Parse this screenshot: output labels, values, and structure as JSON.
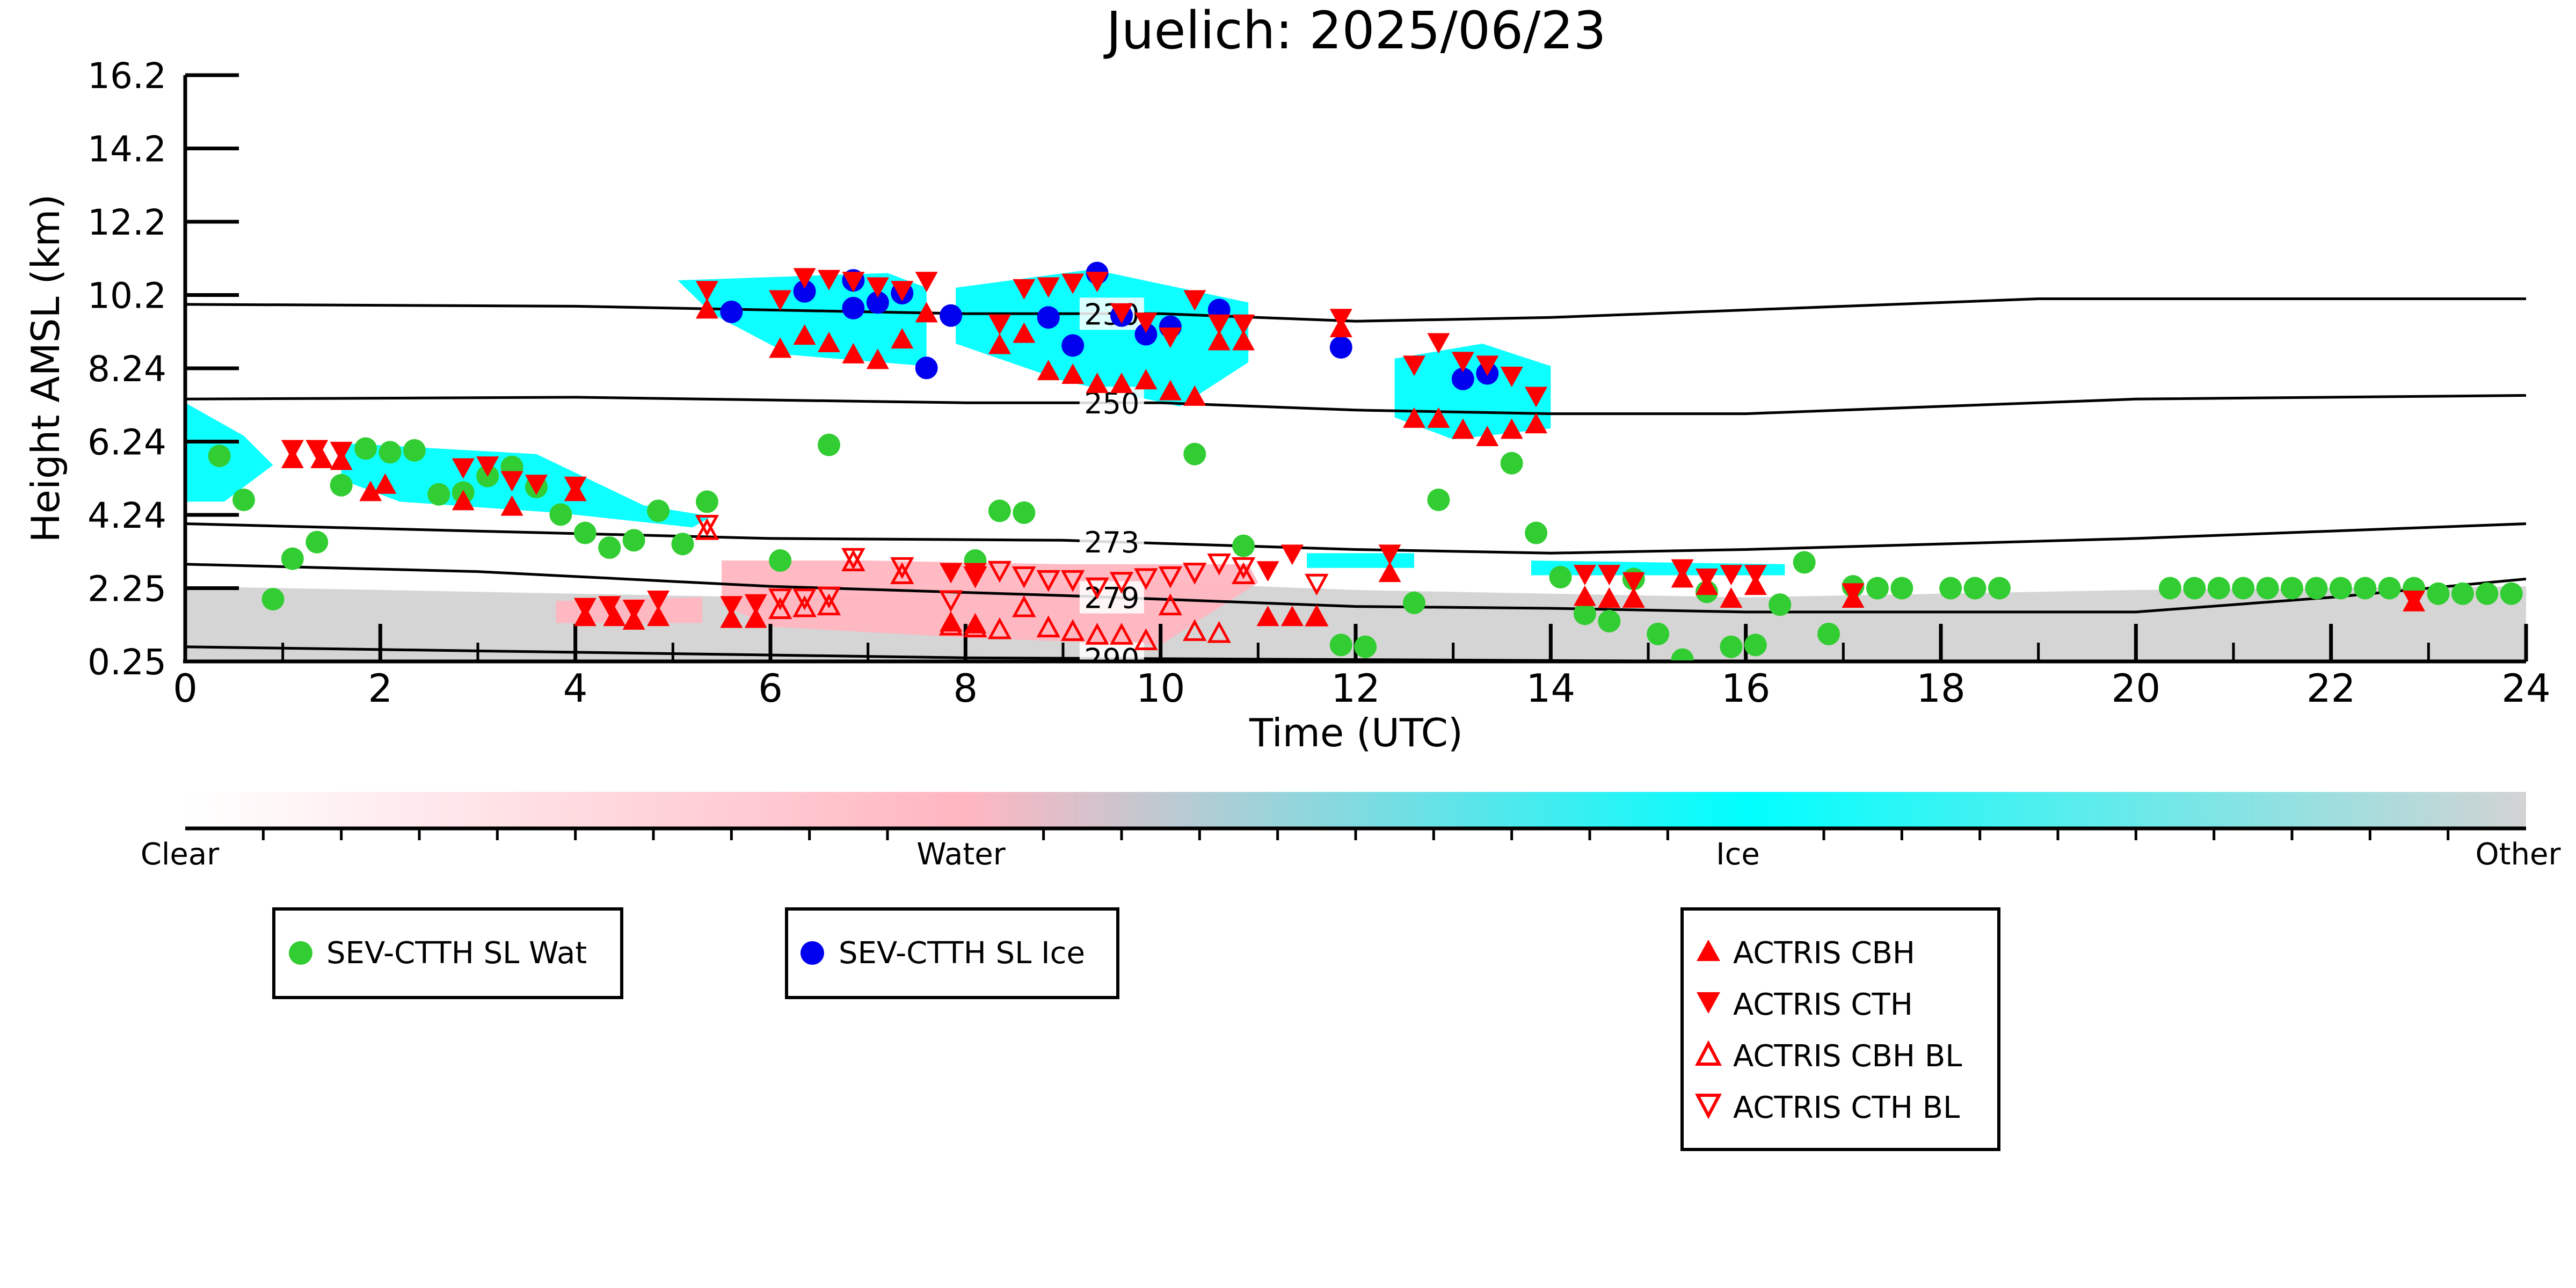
{
  "chart_data": {
    "type": "scatter",
    "title": "Juelich: 2025/06/23",
    "xlabel": "Time (UTC)",
    "ylabel": "Height AMSL (km)",
    "xlim": [
      0,
      24
    ],
    "ylim": [
      0.25,
      16.2
    ],
    "x_ticks": [
      "0",
      "2",
      "4",
      "6",
      "8",
      "10",
      "12",
      "14",
      "16",
      "18",
      "20",
      "22",
      "24"
    ],
    "y_ticks": [
      "0.25",
      "2.25",
      "4.24",
      "6.24",
      "8.24",
      "10.2",
      "12.2",
      "14.2",
      "16.2"
    ],
    "colorbar": {
      "labels": [
        "Clear",
        "Water",
        "Ice",
        "Other"
      ],
      "colors": [
        "#ffffff",
        "#ffb6c1",
        "#00ffff",
        "#d3d3d3"
      ]
    },
    "isotherms": [
      {
        "label": "230",
        "points": [
          [
            0,
            9.95
          ],
          [
            4,
            9.9
          ],
          [
            8,
            9.7
          ],
          [
            10,
            9.7
          ],
          [
            12,
            9.5
          ],
          [
            14,
            9.6
          ],
          [
            16,
            9.8
          ],
          [
            19,
            10.1
          ],
          [
            24,
            10.1
          ]
        ]
      },
      {
        "label": "250",
        "points": [
          [
            0,
            7.4
          ],
          [
            4,
            7.45
          ],
          [
            8,
            7.3
          ],
          [
            10,
            7.3
          ],
          [
            12,
            7.1
          ],
          [
            14,
            7.0
          ],
          [
            16,
            7.0
          ],
          [
            20,
            7.4
          ],
          [
            24,
            7.5
          ]
        ]
      },
      {
        "label": "273",
        "points": [
          [
            0,
            4.0
          ],
          [
            3,
            3.8
          ],
          [
            6,
            3.6
          ],
          [
            9,
            3.55
          ],
          [
            12,
            3.3
          ],
          [
            14,
            3.2
          ],
          [
            16,
            3.3
          ],
          [
            20,
            3.6
          ],
          [
            24,
            4.0
          ]
        ]
      },
      {
        "label": "279",
        "points": [
          [
            0,
            2.9
          ],
          [
            3,
            2.7
          ],
          [
            6,
            2.3
          ],
          [
            9,
            2.05
          ],
          [
            12,
            1.75
          ],
          [
            14,
            1.7
          ],
          [
            16,
            1.6
          ],
          [
            20,
            1.6
          ],
          [
            22,
            2.0
          ],
          [
            24,
            2.5
          ]
        ]
      },
      {
        "label": "290",
        "points": [
          [
            0,
            0.65
          ],
          [
            4,
            0.5
          ],
          [
            8,
            0.35
          ],
          [
            12,
            0.3
          ],
          [
            16,
            0.25
          ],
          [
            24,
            0.25
          ]
        ]
      }
    ],
    "series": [
      {
        "name": "SEV-CTTH SL Wat",
        "marker": "circle",
        "color": "#32cd32",
        "points": [
          [
            0.35,
            5.85
          ],
          [
            0.6,
            4.65
          ],
          [
            0.9,
            1.95
          ],
          [
            1.1,
            3.05
          ],
          [
            1.35,
            3.5
          ],
          [
            1.6,
            5.05
          ],
          [
            1.85,
            6.05
          ],
          [
            2.1,
            5.95
          ],
          [
            2.35,
            6.0
          ],
          [
            2.6,
            4.8
          ],
          [
            2.85,
            4.85
          ],
          [
            3.1,
            5.3
          ],
          [
            3.35,
            5.55
          ],
          [
            3.6,
            5.0
          ],
          [
            3.85,
            4.25
          ],
          [
            4.1,
            3.75
          ],
          [
            4.35,
            3.35
          ],
          [
            4.6,
            3.55
          ],
          [
            4.85,
            4.35
          ],
          [
            5.1,
            3.45
          ],
          [
            5.35,
            4.6
          ],
          [
            6.1,
            3.0
          ],
          [
            6.6,
            6.15
          ],
          [
            8.1,
            3.0
          ],
          [
            8.35,
            4.35
          ],
          [
            8.6,
            4.3
          ],
          [
            10.35,
            5.9
          ],
          [
            10.85,
            3.4
          ],
          [
            11.85,
            0.7
          ],
          [
            12.1,
            0.65
          ],
          [
            12.6,
            1.85
          ],
          [
            12.85,
            4.65
          ],
          [
            13.6,
            5.65
          ],
          [
            13.85,
            3.75
          ],
          [
            14.1,
            2.55
          ],
          [
            14.35,
            1.55
          ],
          [
            14.6,
            1.35
          ],
          [
            14.85,
            2.5
          ],
          [
            15.1,
            1.0
          ],
          [
            15.35,
            0.3
          ],
          [
            15.6,
            2.15
          ],
          [
            15.85,
            0.65
          ],
          [
            16.1,
            0.7
          ],
          [
            16.35,
            1.8
          ],
          [
            16.6,
            2.95
          ],
          [
            16.85,
            1.0
          ],
          [
            17.1,
            2.3
          ],
          [
            17.35,
            2.25
          ],
          [
            17.6,
            2.25
          ],
          [
            18.1,
            2.25
          ],
          [
            18.35,
            2.25
          ],
          [
            18.6,
            2.25
          ],
          [
            20.35,
            2.25
          ],
          [
            20.6,
            2.25
          ],
          [
            20.85,
            2.25
          ],
          [
            21.1,
            2.25
          ],
          [
            21.35,
            2.25
          ],
          [
            21.6,
            2.25
          ],
          [
            21.85,
            2.25
          ],
          [
            22.1,
            2.25
          ],
          [
            22.35,
            2.25
          ],
          [
            22.6,
            2.25
          ],
          [
            22.85,
            2.25
          ],
          [
            23.1,
            2.1
          ],
          [
            23.35,
            2.1
          ],
          [
            23.6,
            2.1
          ],
          [
            23.85,
            2.1
          ]
        ]
      },
      {
        "name": "SEV-CTTH SL Ice",
        "marker": "circle",
        "color": "#0000ee",
        "points": [
          [
            5.6,
            9.75
          ],
          [
            6.85,
            10.6
          ],
          [
            6.35,
            10.3
          ],
          [
            6.85,
            9.85
          ],
          [
            7.1,
            10.0
          ],
          [
            7.35,
            10.25
          ],
          [
            7.6,
            8.25
          ],
          [
            7.85,
            9.65
          ],
          [
            8.85,
            9.6
          ],
          [
            9.1,
            8.85
          ],
          [
            9.35,
            10.8
          ],
          [
            9.6,
            9.65
          ],
          [
            9.85,
            9.15
          ],
          [
            10.1,
            9.35
          ],
          [
            10.6,
            9.8
          ],
          [
            11.85,
            8.8
          ],
          [
            13.1,
            7.95
          ],
          [
            13.35,
            8.1
          ]
        ]
      },
      {
        "name": "ACTRIS CBH",
        "marker": "triangle-up",
        "color": "#ff0000",
        "points": [
          [
            1.1,
            5.75
          ],
          [
            1.4,
            5.75
          ],
          [
            1.6,
            5.7
          ],
          [
            1.9,
            4.85
          ],
          [
            2.05,
            5.05
          ],
          [
            2.85,
            4.6
          ],
          [
            3.35,
            4.45
          ],
          [
            4.0,
            4.85
          ],
          [
            4.1,
            1.45
          ],
          [
            4.4,
            1.45
          ],
          [
            4.6,
            1.35
          ],
          [
            4.85,
            1.45
          ],
          [
            5.35,
            9.8
          ],
          [
            5.6,
            1.4
          ],
          [
            5.85,
            1.4
          ],
          [
            6.1,
            8.75
          ],
          [
            6.35,
            9.1
          ],
          [
            6.6,
            8.9
          ],
          [
            6.85,
            8.6
          ],
          [
            7.1,
            8.45
          ],
          [
            7.35,
            9.0
          ],
          [
            7.6,
            9.7
          ],
          [
            7.85,
            1.3
          ],
          [
            8.1,
            1.25
          ],
          [
            8.35,
            8.85
          ],
          [
            8.6,
            9.15
          ],
          [
            8.85,
            8.15
          ],
          [
            9.1,
            8.05
          ],
          [
            9.35,
            7.8
          ],
          [
            9.6,
            7.8
          ],
          [
            9.85,
            7.9
          ],
          [
            10.1,
            7.6
          ],
          [
            10.35,
            7.45
          ],
          [
            10.6,
            8.95
          ],
          [
            10.85,
            8.95
          ],
          [
            11.1,
            1.45
          ],
          [
            11.35,
            1.45
          ],
          [
            11.6,
            1.45
          ],
          [
            11.85,
            9.3
          ],
          [
            12.35,
            2.65
          ],
          [
            12.6,
            6.85
          ],
          [
            12.85,
            6.85
          ],
          [
            13.1,
            6.55
          ],
          [
            13.35,
            6.35
          ],
          [
            13.6,
            6.55
          ],
          [
            13.85,
            6.7
          ],
          [
            14.35,
            2.0
          ],
          [
            14.6,
            1.95
          ],
          [
            14.85,
            1.95
          ],
          [
            15.35,
            2.5
          ],
          [
            15.6,
            2.3
          ],
          [
            15.85,
            1.95
          ],
          [
            16.1,
            2.3
          ],
          [
            17.1,
            1.95
          ],
          [
            22.85,
            1.85
          ]
        ]
      },
      {
        "name": "ACTRIS CTH",
        "marker": "triangle-down",
        "color": "#ff0000",
        "points": [
          [
            1.1,
            6.05
          ],
          [
            1.35,
            6.05
          ],
          [
            1.6,
            6.0
          ],
          [
            2.85,
            5.55
          ],
          [
            3.1,
            5.6
          ],
          [
            3.35,
            5.2
          ],
          [
            3.6,
            5.1
          ],
          [
            4.0,
            5.05
          ],
          [
            4.1,
            1.75
          ],
          [
            4.35,
            1.8
          ],
          [
            4.6,
            1.7
          ],
          [
            4.85,
            1.95
          ],
          [
            5.35,
            10.35
          ],
          [
            5.6,
            1.8
          ],
          [
            5.85,
            1.85
          ],
          [
            6.1,
            10.1
          ],
          [
            6.35,
            10.7
          ],
          [
            6.6,
            10.65
          ],
          [
            6.85,
            10.6
          ],
          [
            7.1,
            10.45
          ],
          [
            7.35,
            10.35
          ],
          [
            7.6,
            10.6
          ],
          [
            7.85,
            2.7
          ],
          [
            8.1,
            2.7
          ],
          [
            8.35,
            9.45
          ],
          [
            8.6,
            10.4
          ],
          [
            8.85,
            10.45
          ],
          [
            9.1,
            10.55
          ],
          [
            9.35,
            10.6
          ],
          [
            9.6,
            9.75
          ],
          [
            9.85,
            9.5
          ],
          [
            10.1,
            9.1
          ],
          [
            10.35,
            10.1
          ],
          [
            10.6,
            9.45
          ],
          [
            10.85,
            9.45
          ],
          [
            11.1,
            2.75
          ],
          [
            11.35,
            3.2
          ],
          [
            11.85,
            9.6
          ],
          [
            12.35,
            3.2
          ],
          [
            12.6,
            8.35
          ],
          [
            12.85,
            8.95
          ],
          [
            13.1,
            8.45
          ],
          [
            13.35,
            8.35
          ],
          [
            13.6,
            8.05
          ],
          [
            13.85,
            7.5
          ],
          [
            14.35,
            2.65
          ],
          [
            14.6,
            2.65
          ],
          [
            14.85,
            2.45
          ],
          [
            15.35,
            2.8
          ],
          [
            15.6,
            2.55
          ],
          [
            15.85,
            2.65
          ],
          [
            16.1,
            2.65
          ],
          [
            17.1,
            2.15
          ],
          [
            22.85,
            1.95
          ]
        ]
      },
      {
        "name": "ACTRIS CBH BL",
        "marker": "triangle-up-open",
        "color": "#ff0000",
        "points": [
          [
            5.35,
            3.8
          ],
          [
            6.1,
            1.65
          ],
          [
            6.35,
            1.7
          ],
          [
            6.6,
            1.75
          ],
          [
            6.85,
            2.95
          ],
          [
            7.35,
            2.6
          ],
          [
            7.85,
            1.2
          ],
          [
            8.1,
            1.15
          ],
          [
            8.35,
            1.1
          ],
          [
            8.6,
            1.7
          ],
          [
            8.85,
            1.15
          ],
          [
            9.1,
            1.05
          ],
          [
            9.35,
            0.95
          ],
          [
            9.6,
            0.95
          ],
          [
            9.85,
            0.8
          ],
          [
            10.1,
            1.75
          ],
          [
            10.35,
            1.05
          ],
          [
            10.6,
            1.0
          ],
          [
            10.85,
            2.6
          ],
          [
            11.6,
            1.45
          ]
        ]
      },
      {
        "name": "ACTRIS CTH BL",
        "marker": "triangle-down-open",
        "color": "#ff0000",
        "points": [
          [
            5.35,
            4.0
          ],
          [
            6.1,
            2.0
          ],
          [
            6.35,
            2.0
          ],
          [
            6.6,
            2.05
          ],
          [
            6.85,
            3.1
          ],
          [
            7.35,
            2.85
          ],
          [
            7.85,
            1.95
          ],
          [
            8.1,
            2.6
          ],
          [
            8.35,
            2.75
          ],
          [
            8.6,
            2.6
          ],
          [
            8.85,
            2.5
          ],
          [
            9.1,
            2.5
          ],
          [
            9.35,
            2.3
          ],
          [
            9.6,
            2.45
          ],
          [
            9.85,
            2.55
          ],
          [
            10.1,
            2.6
          ],
          [
            10.35,
            2.7
          ],
          [
            10.6,
            2.95
          ],
          [
            10.85,
            2.85
          ],
          [
            11.6,
            2.4
          ]
        ]
      }
    ],
    "legend": [
      {
        "entries": [
          "SEV-CTTH SL Wat"
        ]
      },
      {
        "entries": [
          "SEV-CTTH SL Ice"
        ]
      },
      {
        "entries": [
          "ACTRIS CBH",
          "ACTRIS CTH",
          "ACTRIS CBH BL",
          "ACTRIS CTH BL"
        ]
      }
    ]
  }
}
